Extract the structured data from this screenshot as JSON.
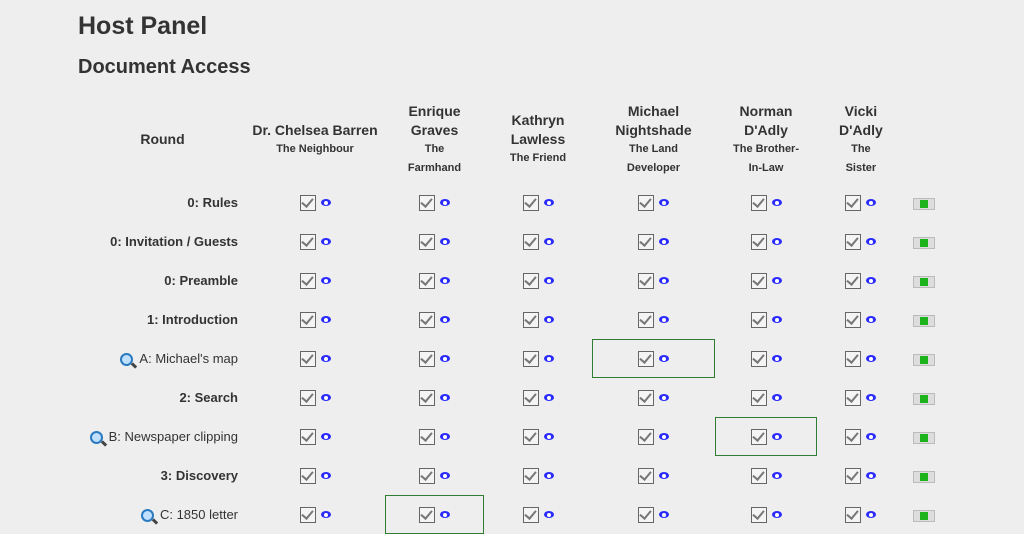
{
  "page_title": "Host Panel",
  "section_title": "Document Access",
  "round_header": "Round",
  "characters": [
    {
      "name": "Dr. Chelsea Barren",
      "role": "The Neighbour"
    },
    {
      "name": "Enrique Graves",
      "role": "The Farmhand"
    },
    {
      "name": "Kathryn Lawless",
      "role": "The Friend"
    },
    {
      "name": "Michael Nightshade",
      "role": "The Land Developer"
    },
    {
      "name": "Norman D'Adly",
      "role": "The Brother-In-Law"
    },
    {
      "name": "Vicki D'Adly",
      "role": "The Sister"
    }
  ],
  "rows": [
    {
      "label": "0: Rules",
      "type": "round",
      "highlight": null
    },
    {
      "label": "0: Invitation / Guests",
      "type": "round",
      "highlight": null
    },
    {
      "label": "0: Preamble",
      "type": "round",
      "highlight": null
    },
    {
      "label": "1: Introduction",
      "type": "round",
      "highlight": null
    },
    {
      "label": "A: Michael's map",
      "type": "clue",
      "highlight": 3
    },
    {
      "label": "2: Search",
      "type": "round",
      "highlight": null
    },
    {
      "label": "B: Newspaper clipping",
      "type": "clue",
      "highlight": 4
    },
    {
      "label": "3: Discovery",
      "type": "round",
      "highlight": null
    },
    {
      "label": "C: 1850 letter",
      "type": "clue",
      "highlight": 1
    }
  ],
  "all_checked": true,
  "colors": {
    "highlight": "#2e7d32",
    "eye": "#2a2aff",
    "toggle": "#1db31d"
  }
}
